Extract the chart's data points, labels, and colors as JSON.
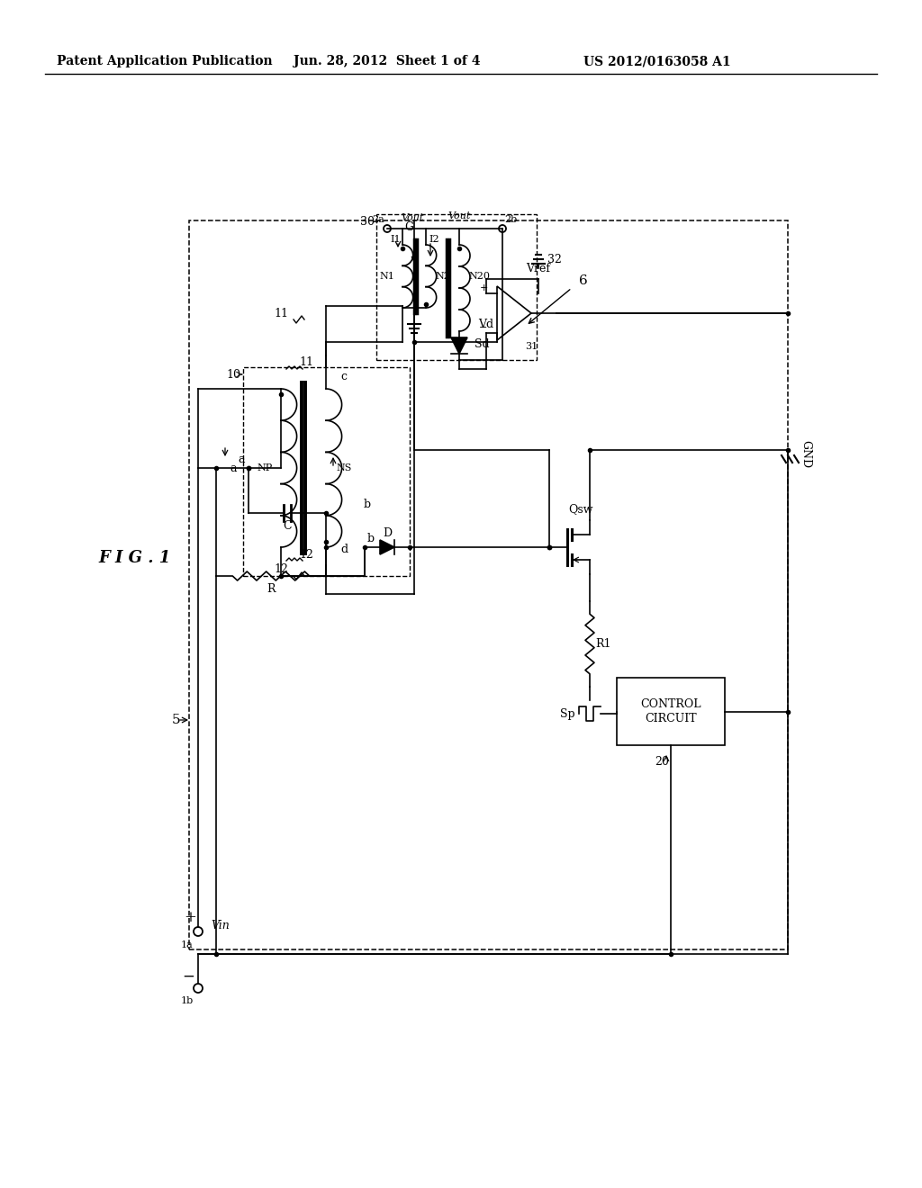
{
  "bg_color": "#ffffff",
  "header_left": "Patent Application Publication",
  "header_mid": "Jun. 28, 2012  Sheet 1 of 4",
  "header_right": "US 2012/0163058 A1",
  "fig_label": "F I G . 1"
}
